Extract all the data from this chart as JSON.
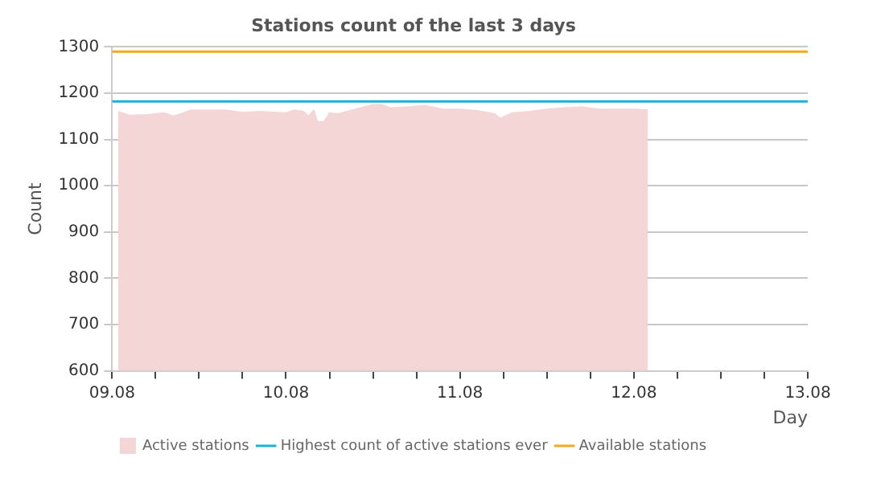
{
  "chart_data": {
    "type": "area",
    "title": "Stations count of the last 3 days",
    "xlabel": "Day",
    "ylabel": "Count",
    "xlim": [
      "--08-09",
      "--08-13"
    ],
    "xticks": [
      {
        "value": "--08-09",
        "label": "09.08"
      },
      {
        "value": "--08-09T06:00",
        "label": null
      },
      {
        "value": "--08-09T12:00",
        "label": null
      },
      {
        "value": "--08-09T18:00",
        "label": null
      },
      {
        "value": "--08-10",
        "label": "10.08"
      },
      {
        "value": "--08-10T06:00",
        "label": null
      },
      {
        "value": "--08-10T12:00",
        "label": null
      },
      {
        "value": "--08-10T18:00",
        "label": null
      },
      {
        "value": "--08-11",
        "label": "11.08"
      },
      {
        "value": "--08-11T06:00",
        "label": null
      },
      {
        "value": "--08-11T12:00",
        "label": null
      },
      {
        "value": "--08-11T18:00",
        "label": null
      },
      {
        "value": "--08-12",
        "label": "12.08"
      },
      {
        "value": "--08-12T06:00",
        "label": null
      },
      {
        "value": "--08-12T12:00",
        "label": null
      },
      {
        "value": "--08-12T18:00",
        "label": null
      },
      {
        "value": "--08-13",
        "label": "13.08"
      }
    ],
    "ylim": [
      600,
      1300
    ],
    "yticks": [
      600,
      700,
      800,
      900,
      1000,
      1100,
      1200,
      1300
    ],
    "grid": "y",
    "legend": "bottom",
    "series": [
      {
        "name": "Active stations",
        "color": "#f4d6d7",
        "x": [
          "--08-09T00:50",
          "--08-09T01:12",
          "--08-09T02:24",
          "--08-09T04:48",
          "--08-09T07:12",
          "--08-09T08:24",
          "--08-09T09:07",
          "--08-09T10:48",
          "--08-09T13:12",
          "--08-09T15:36",
          "--08-09T18:00",
          "--08-09T20:24",
          "--08-09T22:48",
          "--08-10T00:00",
          "--08-10T01:12",
          "--08-10T02:24",
          "--08-10T03:07",
          "--08-10T03:50",
          "--08-10T04:19",
          "--08-10T05:17",
          "--08-10T06:00",
          "--08-10T07:12",
          "--08-10T08:24",
          "--08-10T10:48",
          "--08-10T12:00",
          "--08-10T13:12",
          "--08-10T14:24",
          "--08-10T16:48",
          "--08-10T19:12",
          "--08-10T21:36",
          "--08-11T00:00",
          "--08-11T02:24",
          "--08-11T04:48",
          "--08-11T05:31",
          "--08-11T07:12",
          "--08-11T09:36",
          "--08-11T12:00",
          "--08-11T14:24",
          "--08-11T16:48",
          "--08-11T19:12",
          "--08-11T21:36",
          "--08-12T00:00",
          "--08-12T01:55"
        ],
        "values": [
          1160,
          1158,
          1152,
          1153,
          1157,
          1150,
          1153,
          1163,
          1163,
          1163,
          1158,
          1160,
          1158,
          1157,
          1163,
          1160,
          1150,
          1163,
          1138,
          1138,
          1157,
          1155,
          1160,
          1170,
          1175,
          1175,
          1168,
          1170,
          1173,
          1165,
          1165,
          1162,
          1155,
          1145,
          1157,
          1160,
          1165,
          1168,
          1170,
          1165,
          1165,
          1165,
          1163
        ]
      },
      {
        "name": "Highest count of active stations ever",
        "type": "line",
        "color": "#1ab2d6",
        "x": [
          "--08-09",
          "--08-13"
        ],
        "values": [
          1182,
          1182
        ]
      },
      {
        "name": "Available stations",
        "type": "line",
        "color": "#f5a81c",
        "x": [
          "--08-09",
          "--08-13"
        ],
        "values": [
          1290,
          1290
        ]
      }
    ]
  }
}
